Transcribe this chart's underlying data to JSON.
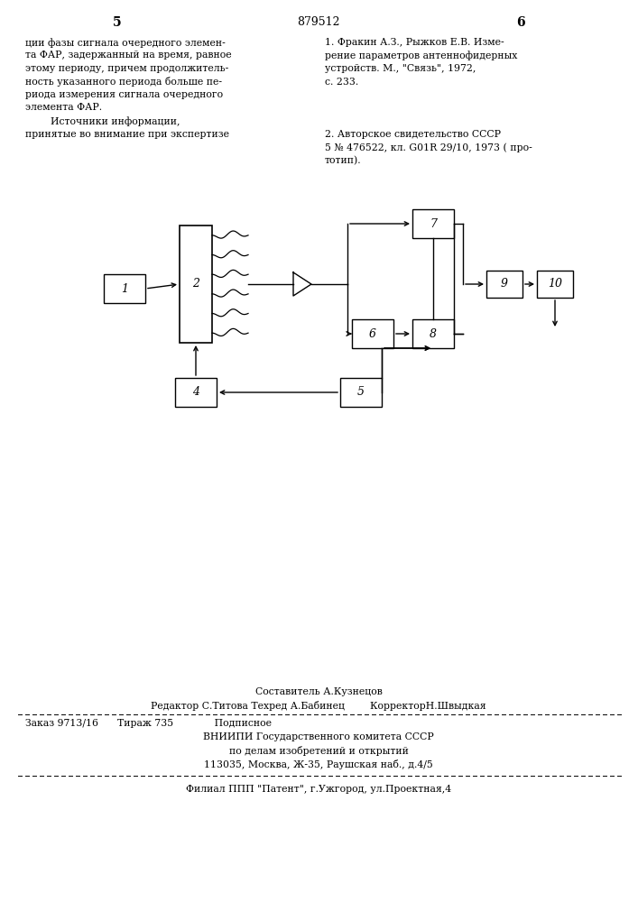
{
  "page_number_left": "5",
  "page_number_center": "879512",
  "page_number_right": "6",
  "text_left_lines": [
    "ции фазы сигнала очередного элемен-",
    "та ФАР, задержанный на время, равное",
    "этому периоду, причем продолжитель-",
    "ность указанного периода больше пе-",
    "риода измерения сигнала очередного",
    "элемента ФАР.",
    "        Источники информации,",
    "принятые во внимание при экспертизе"
  ],
  "text_right_lines_1": [
    "1. Фракин А.З., Рыжков Е.В. Изме-",
    "рение параметров антеннофидерных",
    "устройств. М., \"Связь\", 1972,",
    "с. 233."
  ],
  "text_right_lines_2": [
    "2. Авторское свидетельство СССР",
    "5 № 476522, кл. G01R 29/10, 1973 ( про-",
    "тотип)."
  ],
  "footer_line1": "Составитель А.Кузнецов",
  "footer_line2": "Редактор С.Титова Техред А.Бабинец        КорректорН.Швыдкая",
  "footer_line3": "Заказ 9713/16      Тираж 735             Подписное",
  "footer_line4": "ВНИИПИ Государственного комитета СССР",
  "footer_line5": "по делам изобретений и открытий",
  "footer_line6": "113035, Москва, Ж-35, Раушская наб., д.4/5",
  "footer_line7": "Филиал ППП \"Патент\", г.Ужгород, ул.Проектная,4",
  "bg_color": "#ffffff"
}
